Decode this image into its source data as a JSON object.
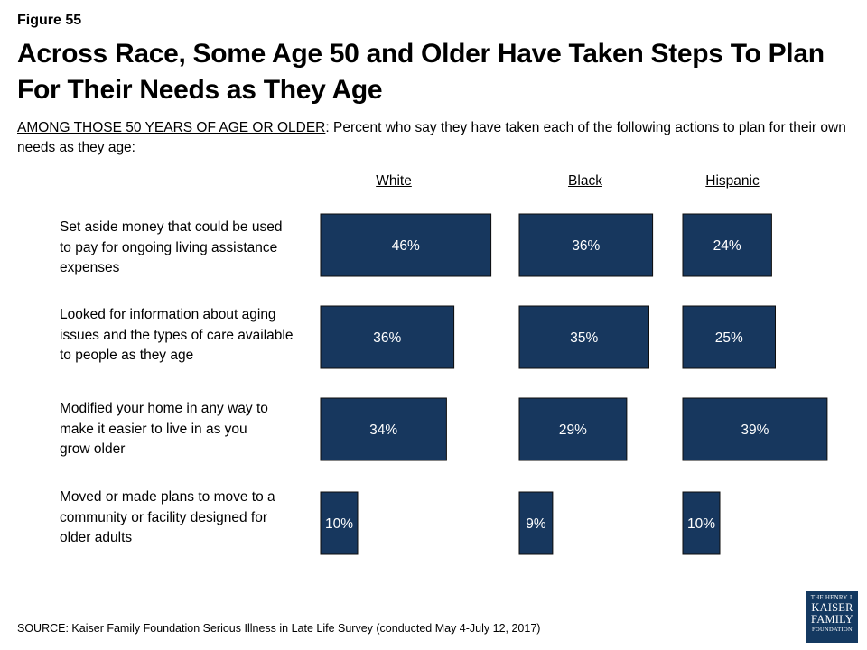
{
  "figure_label": "Figure 55",
  "title": "Across Race, Some Age 50 and Older Have Taken Steps To Plan For Their Needs as They Age",
  "subtitle_prefix": "AMONG THOSE 50 YEARS OF AGE OR OLDER",
  "subtitle_rest": ": Percent who say they have taken each of the following actions to plan for their own needs as they age:",
  "source": "SOURCE: Kaiser Family Foundation Serious Illness in Late Life Survey (conducted May 4-July 12, 2017)",
  "logo": {
    "line1": "THE HENRY J.",
    "line2": "KAISER",
    "line3": "FAMILY",
    "line4": "FOUNDATION"
  },
  "colors": {
    "bar": "#17375e",
    "bar_border": "#0d0d0d",
    "label": "#ffffff"
  },
  "chart_data": {
    "type": "bar",
    "orientation": "horizontal",
    "categories": [
      "Set aside money that could be used to pay for ongoing living assistance expenses",
      "Looked for information about aging issues and the types of care available to people as they age",
      "Modified your home in any way to make it easier to live in as you grow older",
      "Moved or made plans to move to a community or facility designed for older adults"
    ],
    "series": [
      {
        "name": "White",
        "values": [
          46,
          36,
          34,
          10
        ],
        "labels": [
          "46%",
          "36%",
          "34%",
          "10%"
        ]
      },
      {
        "name": "Black",
        "values": [
          36,
          35,
          29,
          9
        ],
        "labels": [
          "36%",
          "35%",
          "29%",
          "9%"
        ]
      },
      {
        "name": "Hispanic",
        "values": [
          24,
          25,
          39,
          10
        ],
        "labels": [
          "24%",
          "25%",
          "39%",
          "10%"
        ]
      }
    ],
    "unit": "%",
    "axis_visible": false,
    "grid": false
  }
}
